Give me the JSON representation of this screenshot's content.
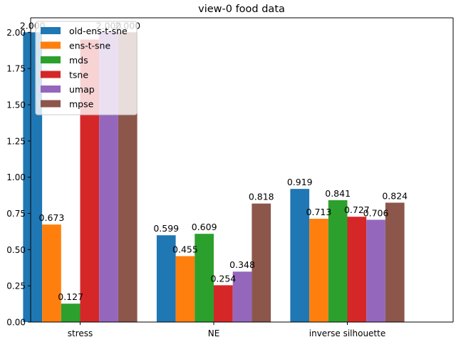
{
  "chart_data": {
    "type": "bar",
    "title": "view-0 food data",
    "xlabel": "",
    "ylabel": "",
    "categories": [
      "stress",
      "NE",
      "inverse silhouette"
    ],
    "ylim": [
      0,
      2.1
    ],
    "yticks": [
      0.0,
      0.25,
      0.5,
      0.75,
      1.0,
      1.25,
      1.5,
      1.75,
      2.0
    ],
    "ytick_labels": [
      "0.00",
      "0.25",
      "0.50",
      "0.75",
      "1.00",
      "1.25",
      "1.50",
      "1.75",
      "2.00"
    ],
    "grid": false,
    "legend_position": "top-left",
    "series": [
      {
        "name": "old-ens-t-sne",
        "color": "#1f77b4",
        "values": [
          2.0,
          0.599,
          0.919
        ],
        "labels": [
          "2.000",
          "0.599",
          "0.919"
        ]
      },
      {
        "name": "ens-t-sne",
        "color": "#ff7f0e",
        "values": [
          0.673,
          0.455,
          0.713
        ],
        "labels": [
          "0.673",
          "0.455",
          "0.713"
        ]
      },
      {
        "name": "mds",
        "color": "#2ca02c",
        "values": [
          0.127,
          0.609,
          0.841
        ],
        "labels": [
          "0.127",
          "0.609",
          "0.841"
        ]
      },
      {
        "name": "tsne",
        "color": "#d62728",
        "values": [
          1.95,
          0.254,
          0.727
        ],
        "labels": [
          "",
          "0.254",
          "0.727"
        ]
      },
      {
        "name": "umap",
        "color": "#9467bd",
        "values": [
          2.0,
          0.348,
          0.706
        ],
        "labels": [
          "2.000",
          "0.348",
          "0.706"
        ]
      },
      {
        "name": "mpse",
        "color": "#8c564b",
        "values": [
          2.0,
          0.818,
          0.824
        ],
        "labels": [
          "2.000",
          "0.818",
          "0.824"
        ]
      }
    ]
  }
}
